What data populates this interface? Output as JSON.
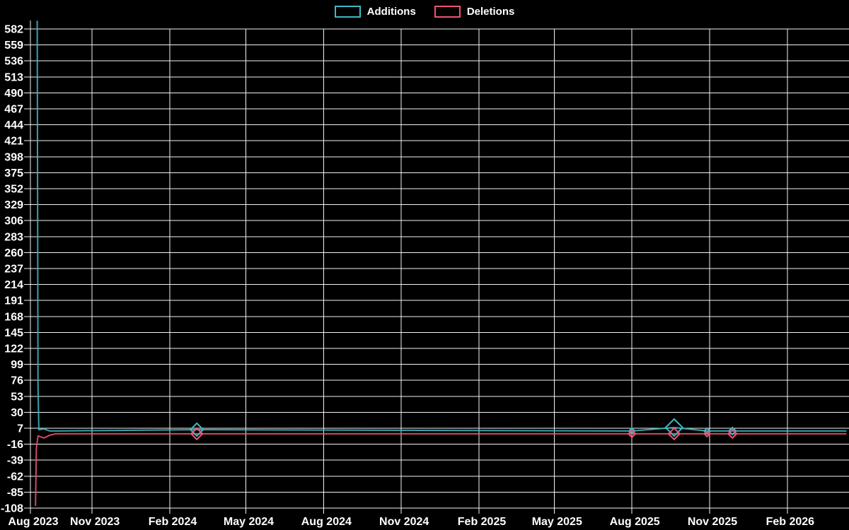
{
  "legend": {
    "additions_label": "Additions",
    "deletions_label": "Deletions"
  },
  "colors": {
    "background": "#000000",
    "grid": "#f2f2f2",
    "text": "#ffffff",
    "additions": "#3fb8c4",
    "deletions": "#ee5377"
  },
  "chart_data": {
    "type": "line",
    "title": "",
    "xlabel": "",
    "ylabel": "",
    "grid": true,
    "legend_position": "top-center",
    "x_axis": {
      "domain": [
        "2023-08-20",
        "2026-04-15"
      ],
      "ticks": [
        {
          "label": "Aug 2023",
          "date": "2023-08-20"
        },
        {
          "label": "Nov 2023",
          "date": "2023-11-01"
        },
        {
          "label": "Feb 2024",
          "date": "2024-02-01"
        },
        {
          "label": "May 2024",
          "date": "2024-05-01"
        },
        {
          "label": "Aug 2024",
          "date": "2024-08-01"
        },
        {
          "label": "Nov 2024",
          "date": "2024-11-01"
        },
        {
          "label": "Feb 2025",
          "date": "2025-02-01"
        },
        {
          "label": "May 2025",
          "date": "2025-05-01"
        },
        {
          "label": "Aug 2025",
          "date": "2025-08-01"
        },
        {
          "label": "Nov 2025",
          "date": "2025-11-01"
        },
        {
          "label": "Feb 2026",
          "date": "2026-02-01"
        }
      ]
    },
    "y_axis": {
      "min": -108,
      "max": 582,
      "step": 23,
      "ticks": [
        582,
        559,
        536,
        513,
        490,
        467,
        444,
        421,
        398,
        375,
        352,
        329,
        306,
        283,
        260,
        237,
        214,
        191,
        168,
        145,
        122,
        99,
        76,
        53,
        30,
        7,
        -16,
        -39,
        -62,
        -85,
        -108
      ]
    },
    "series": [
      {
        "name": "Additions",
        "color_key": "additions",
        "marker_shape": "diamond",
        "points": [
          {
            "date": "2023-08-28",
            "value": 594
          },
          {
            "date": "2023-08-29",
            "value": 70
          },
          {
            "date": "2023-08-30",
            "value": 5
          },
          {
            "date": "2023-09-05",
            "value": 6
          },
          {
            "date": "2023-09-12",
            "value": 3
          },
          {
            "date": "2023-09-19",
            "value": 3
          },
          {
            "date": "2024-03-04",
            "value": 5,
            "marker_r": 9
          },
          {
            "date": "2025-08-01",
            "value": 3,
            "marker_r": 4
          },
          {
            "date": "2025-09-20",
            "value": 8,
            "marker_r": 12
          },
          {
            "date": "2025-10-29",
            "value": 3,
            "marker_r": 4
          },
          {
            "date": "2025-11-28",
            "value": 3,
            "marker_r": 5
          },
          {
            "date": "2026-04-12",
            "value": 3
          }
        ]
      },
      {
        "name": "Deletions",
        "color_key": "deletions",
        "marker_shape": "diamond",
        "points": [
          {
            "date": "2023-08-26",
            "value": -105
          },
          {
            "date": "2023-08-27",
            "value": -22
          },
          {
            "date": "2023-08-29",
            "value": -4
          },
          {
            "date": "2023-09-05",
            "value": -7
          },
          {
            "date": "2023-09-12",
            "value": -3
          },
          {
            "date": "2023-09-19",
            "value": -1
          },
          {
            "date": "2024-03-04",
            "value": -1,
            "marker_r": 8
          },
          {
            "date": "2025-08-01",
            "value": -1,
            "marker_r": 5
          },
          {
            "date": "2025-09-20",
            "value": -1,
            "marker_r": 8
          },
          {
            "date": "2025-10-29",
            "value": -1,
            "marker_r": 4
          },
          {
            "date": "2025-11-28",
            "value": -1,
            "marker_r": 6
          },
          {
            "date": "2026-04-12",
            "value": -1
          }
        ]
      }
    ]
  }
}
